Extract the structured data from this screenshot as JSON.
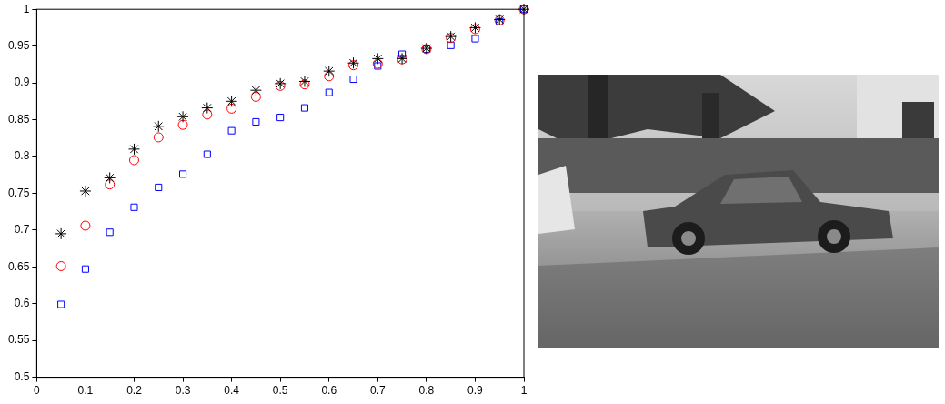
{
  "chart_data": {
    "type": "scatter",
    "x": [
      0.05,
      0.1,
      0.15,
      0.2,
      0.25,
      0.3,
      0.35,
      0.4,
      0.45,
      0.5,
      0.55,
      0.6,
      0.65,
      0.7,
      0.75,
      0.8,
      0.85,
      0.9,
      0.95,
      1.0
    ],
    "series": [
      {
        "color": "#000000",
        "marker": "star",
        "values": [
          0.695,
          0.753,
          0.771,
          0.81,
          0.841,
          0.854,
          0.866,
          0.875,
          0.89,
          0.899,
          0.902,
          0.916,
          0.927,
          0.933,
          0.933,
          0.947,
          0.963,
          0.975,
          0.986,
          1.0
        ]
      },
      {
        "color": "#ff0000",
        "marker": "circle",
        "values": [
          0.651,
          0.706,
          0.762,
          0.795,
          0.826,
          0.843,
          0.857,
          0.865,
          0.881,
          0.896,
          0.898,
          0.909,
          0.924,
          0.926,
          0.932,
          0.946,
          0.961,
          0.973,
          0.985,
          1.0
        ]
      },
      {
        "color": "#0000ff",
        "marker": "square",
        "values": [
          0.599,
          0.647,
          0.697,
          0.731,
          0.758,
          0.776,
          0.803,
          0.835,
          0.847,
          0.853,
          0.866,
          0.887,
          0.905,
          0.923,
          0.939,
          0.946,
          0.951,
          0.96,
          0.983,
          1.0
        ]
      }
    ],
    "xlim": [
      0,
      1
    ],
    "ylim": [
      0.5,
      1
    ],
    "xticks": [
      0,
      0.1,
      0.2,
      0.3,
      0.4,
      0.5,
      0.6,
      0.7,
      0.8,
      0.9,
      1
    ],
    "yticks": [
      0.5,
      0.55,
      0.6,
      0.65,
      0.7,
      0.75,
      0.8,
      0.85,
      0.9,
      0.95,
      1
    ],
    "grid": false
  }
}
